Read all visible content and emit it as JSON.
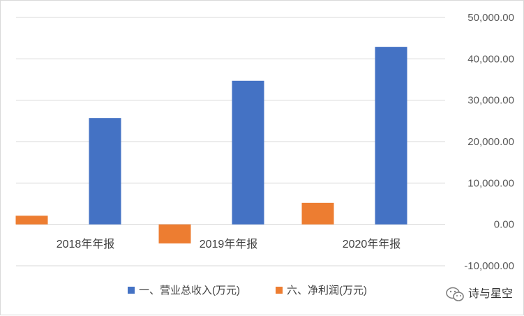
{
  "chart_data": {
    "type": "bar",
    "categories": [
      "2018年年报",
      "2019年年报",
      "2020年年报"
    ],
    "series": [
      {
        "name": "一、营业总收入(万元)",
        "color": "#4472C4",
        "values": [
          25700,
          34700,
          42900
        ]
      },
      {
        "name": "六、净利润(万元)",
        "color": "#ED7D31",
        "values": [
          2100,
          -4600,
          5200
        ]
      }
    ],
    "ylim": [
      -10000,
      50000
    ],
    "yticks": [
      "50,000.00",
      "40,000.00",
      "30,000.00",
      "20,000.00",
      "10,000.00",
      "0.00",
      "-10,000.00"
    ],
    "ytick_values": [
      50000,
      40000,
      30000,
      20000,
      10000,
      0,
      -10000
    ],
    "y_axis_side": "right",
    "grid": true,
    "legend_position": "bottom",
    "gridline_color": "#d9d9d9"
  },
  "watermark": {
    "text": "诗与星空",
    "icon": "wechat-icon"
  }
}
